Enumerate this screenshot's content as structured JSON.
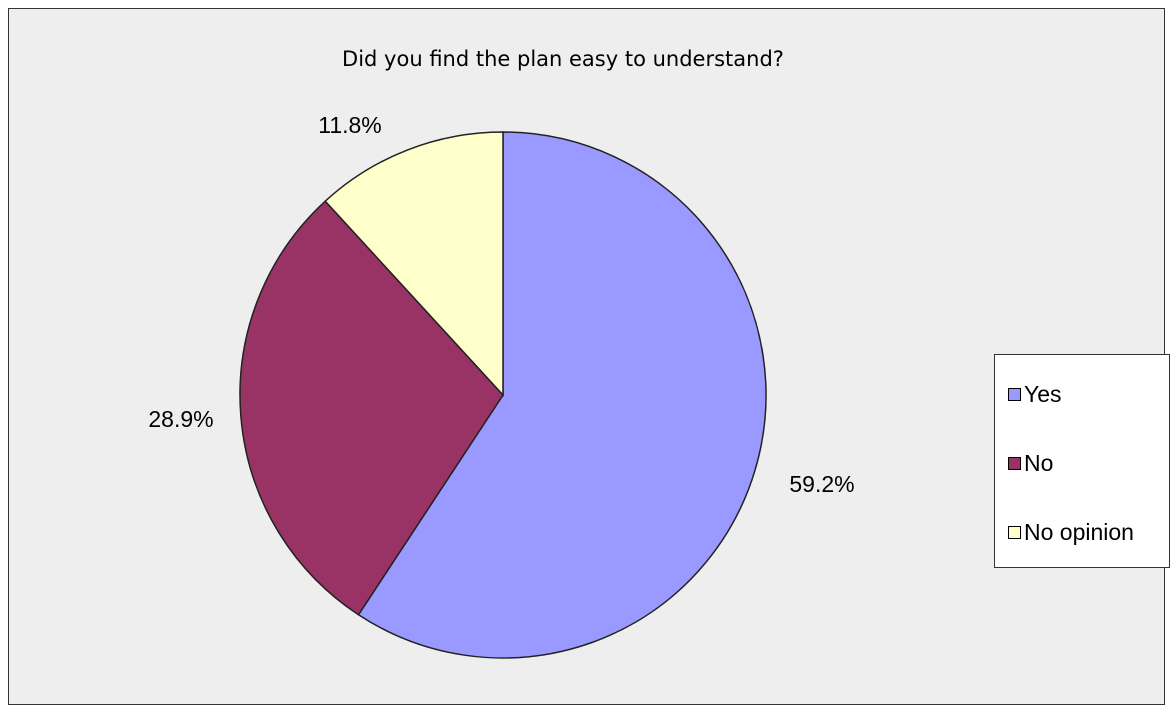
{
  "chart_data": {
    "type": "pie",
    "title": "Did you find the plan easy to understand?",
    "slices": [
      {
        "label": "Yes",
        "value": 59.2,
        "display": "59.2%",
        "color": "#9999ff"
      },
      {
        "label": "No",
        "value": 28.9,
        "display": "28.9%",
        "color": "#993366"
      },
      {
        "label": "No opinion",
        "value": 11.8,
        "display": "11.8%",
        "color": "#ffffcc"
      }
    ],
    "legend_position": "right",
    "start_angle": "12 o'clock",
    "direction": "clockwise"
  }
}
